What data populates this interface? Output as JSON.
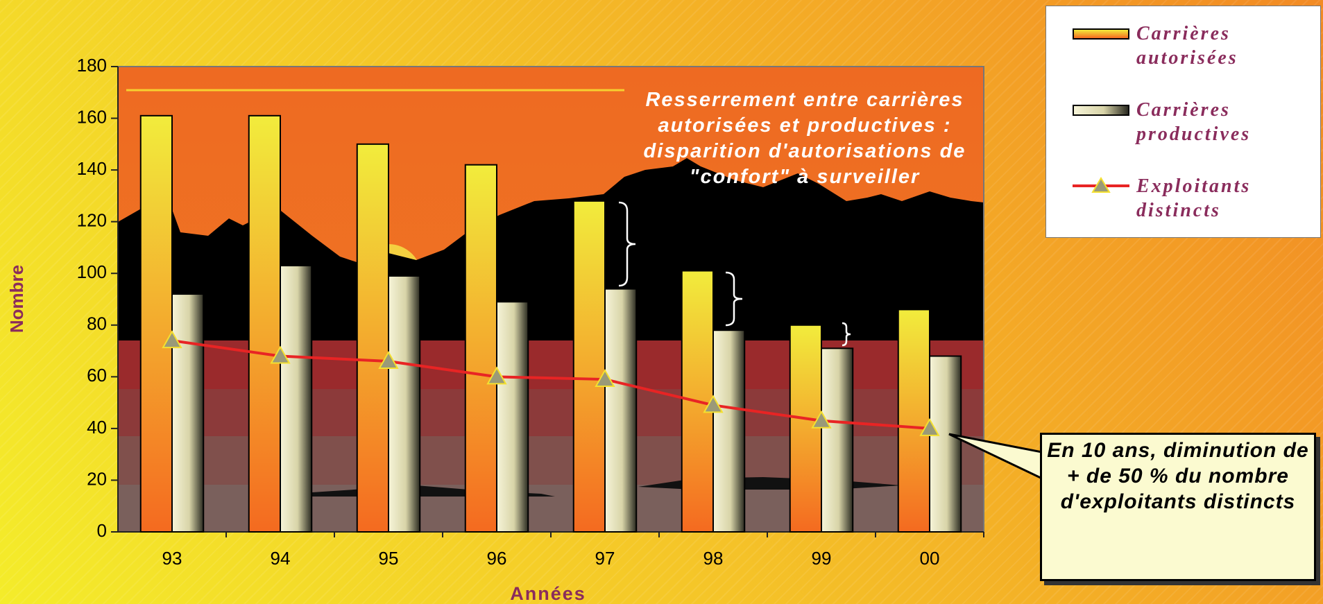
{
  "chart_data": {
    "type": "bar",
    "x_label": "Années",
    "y_label": "Nombre",
    "categories": [
      "93",
      "94",
      "95",
      "96",
      "97",
      "98",
      "99",
      "00"
    ],
    "series": [
      {
        "name": "Carrières autorisées",
        "type": "bar",
        "color": "#f2e63a",
        "values": [
          161,
          161,
          150,
          142,
          128,
          101,
          80,
          86
        ]
      },
      {
        "name": "Carrières productives",
        "type": "bar",
        "color": "#ece9c4",
        "values": [
          92,
          103,
          99,
          89,
          94,
          78,
          71,
          68
        ]
      },
      {
        "name": "Exploitants distincts",
        "type": "line",
        "color": "#e82424",
        "values": [
          74,
          68,
          66,
          60,
          59,
          49,
          43,
          40
        ]
      }
    ],
    "ylim": [
      0,
      180
    ],
    "yticks": [
      0,
      20,
      40,
      60,
      80,
      100,
      120,
      140,
      160,
      180
    ],
    "annotations": [
      "Resserrement entre carrières autorisées et productives : disparition d'autorisations de \"confort\" à surveiller",
      "En 10 ans, diminution de + de 50 % du nombre d'exploitants distincts"
    ]
  }
}
